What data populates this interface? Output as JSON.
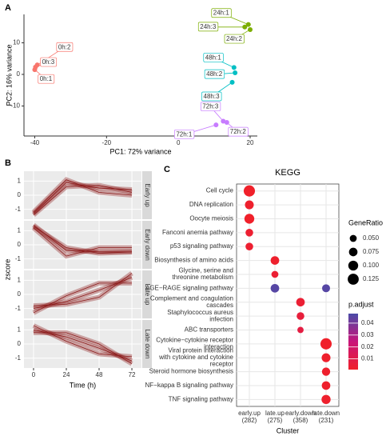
{
  "chart_data": [
    {
      "type": "scatter",
      "panel": "A",
      "xlabel": "PC1: 72% variance",
      "ylabel": "PC2: 16% variance",
      "xlim": [
        -43,
        22
      ],
      "ylim": [
        -19.5,
        19
      ],
      "xticks": [
        -40,
        -20,
        0,
        20
      ],
      "yticks": [
        -10,
        0,
        10
      ],
      "series": [
        {
          "name": "0h",
          "color": "#F8766D",
          "points": [
            {
              "label": "0h:1",
              "x": -40,
              "y": 1.5
            },
            {
              "label": "0h:2",
              "x": -39.3,
              "y": 3
            },
            {
              "label": "0h:3",
              "x": -39.8,
              "y": 2.3
            }
          ]
        },
        {
          "name": "24h",
          "color": "#7CAE00",
          "points": [
            {
              "label": "24h:1",
              "x": 19.5,
              "y": 15.8
            },
            {
              "label": "24h:2",
              "x": 20,
              "y": 14.2
            },
            {
              "label": "24h:3",
              "x": 18.5,
              "y": 15
            }
          ]
        },
        {
          "name": "48h",
          "color": "#00BFC4",
          "points": [
            {
              "label": "48h:1",
              "x": 15.5,
              "y": 2.2
            },
            {
              "label": "48h:2",
              "x": 15.8,
              "y": 0.5
            },
            {
              "label": "48h:3",
              "x": 15,
              "y": -2.5
            }
          ]
        },
        {
          "name": "72h",
          "color": "#C77CFF",
          "points": [
            {
              "label": "72h:1",
              "x": 10.5,
              "y": -16
            },
            {
              "label": "72h:2",
              "x": 13.5,
              "y": -15.2
            },
            {
              "label": "72h:3",
              "x": 12.5,
              "y": -14.8
            }
          ]
        }
      ]
    },
    {
      "type": "facet-line",
      "panel": "B",
      "xlabel": "Time (h)",
      "ylabel": "zscore",
      "color": "#8B1A1A",
      "x": [
        0,
        24,
        48,
        72
      ],
      "xlim": [
        -7,
        79
      ],
      "xticks": [
        0,
        24,
        48,
        72
      ],
      "ylim": [
        -1.7,
        1.7
      ],
      "yticks": [
        -1,
        0,
        1
      ],
      "facets": [
        {
          "label": "Early up",
          "series": [
            [
              -1.3,
              0.9,
              0.5,
              0.4
            ],
            [
              -1.4,
              0.6,
              0.7,
              0.2
            ],
            [
              -1.2,
              1.1,
              0.2,
              0.0
            ]
          ]
        },
        {
          "label": "Early down",
          "series": [
            [
              1.4,
              -0.4,
              -0.5,
              -0.5
            ],
            [
              1.2,
              -0.8,
              -0.2,
              -0.2
            ],
            [
              1.3,
              -0.2,
              -0.6,
              -0.5
            ]
          ]
        },
        {
          "label": "Late up",
          "series": [
            [
              -1.0,
              -0.5,
              0.3,
              1.2
            ],
            [
              -1.3,
              -0.1,
              0.8,
              0.8
            ],
            [
              -0.8,
              -0.7,
              -0.2,
              1.5
            ]
          ]
        },
        {
          "label": "Late down",
          "series": [
            [
              1.0,
              0.5,
              -0.3,
              -1.2
            ],
            [
              1.3,
              0.2,
              -0.7,
              -0.9
            ],
            [
              0.8,
              0.8,
              0.0,
              -1.4
            ]
          ]
        }
      ]
    },
    {
      "type": "dot",
      "panel": "C",
      "title": "KEGG",
      "xlabel": "Cluster",
      "categories": [
        {
          "name": "early.up",
          "count": "(282)"
        },
        {
          "name": "late.up",
          "count": "(275)"
        },
        {
          "name": "early.down",
          "count": "(358)"
        },
        {
          "name": "late.down",
          "count": "(231)"
        }
      ],
      "rows": [
        "Cell cycle",
        "DNA replication",
        "Oocyte meiosis",
        "Fanconi anemia pathway",
        "p53 signaling pathway",
        "Biosynthesis of amino acids",
        "Glycine, serine and\nthreonine metabolism",
        "AGE−RAGE signaling pathway",
        "Complement and coagulation\ncascades",
        "Staphylococcus aureus\ninfection",
        "ABC transporters",
        "Cytokine−cytokine receptor\ninteraction",
        "Viral protein interaction\nwith cytokine and cytokine\nreceptor",
        "Steroid hormone biosynthesis",
        "NF−kappa B signaling pathway",
        "TNF signaling pathway"
      ],
      "points": [
        {
          "cluster": 0,
          "row": 0,
          "GeneRatio": 0.13,
          "p.adjust": 0.001
        },
        {
          "cluster": 0,
          "row": 1,
          "GeneRatio": 0.08,
          "p.adjust": 0.002
        },
        {
          "cluster": 0,
          "row": 2,
          "GeneRatio": 0.1,
          "p.adjust": 0.001
        },
        {
          "cluster": 0,
          "row": 3,
          "GeneRatio": 0.06,
          "p.adjust": 0.003
        },
        {
          "cluster": 0,
          "row": 4,
          "GeneRatio": 0.06,
          "p.adjust": 0.003
        },
        {
          "cluster": 1,
          "row": 5,
          "GeneRatio": 0.075,
          "p.adjust": 0.002
        },
        {
          "cluster": 1,
          "row": 6,
          "GeneRatio": 0.05,
          "p.adjust": 0.004
        },
        {
          "cluster": 1,
          "row": 7,
          "GeneRatio": 0.075,
          "p.adjust": 0.046
        },
        {
          "cluster": 2,
          "row": 8,
          "GeneRatio": 0.075,
          "p.adjust": 0.004
        },
        {
          "cluster": 2,
          "row": 9,
          "GeneRatio": 0.06,
          "p.adjust": 0.006
        },
        {
          "cluster": 2,
          "row": 10,
          "GeneRatio": 0.04,
          "p.adjust": 0.008
        },
        {
          "cluster": 3,
          "row": 7,
          "GeneRatio": 0.065,
          "p.adjust": 0.046
        },
        {
          "cluster": 3,
          "row": 11,
          "GeneRatio": 0.13,
          "p.adjust": 0.001
        },
        {
          "cluster": 3,
          "row": 12,
          "GeneRatio": 0.08,
          "p.adjust": 0.002
        },
        {
          "cluster": 3,
          "row": 13,
          "GeneRatio": 0.07,
          "p.adjust": 0.002
        },
        {
          "cluster": 3,
          "row": 14,
          "GeneRatio": 0.075,
          "p.adjust": 0.002
        },
        {
          "cluster": 3,
          "row": 15,
          "GeneRatio": 0.085,
          "p.adjust": 0.002
        }
      ],
      "size_title": "GeneRatio",
      "size_ticks": [
        {
          "value": 0.05,
          "label": "0.050"
        },
        0.075,
        {
          "value": 0.1,
          "label": "0.100"
        },
        0.125
      ],
      "color_title": "p.adjust",
      "color_lim": [
        0.001,
        0.048
      ],
      "color_ticks": [
        0.01,
        0.02,
        0.03,
        0.04
      ],
      "colors": [
        "#F0202A",
        "#C8157A",
        "#4B4BA8"
      ]
    }
  ]
}
